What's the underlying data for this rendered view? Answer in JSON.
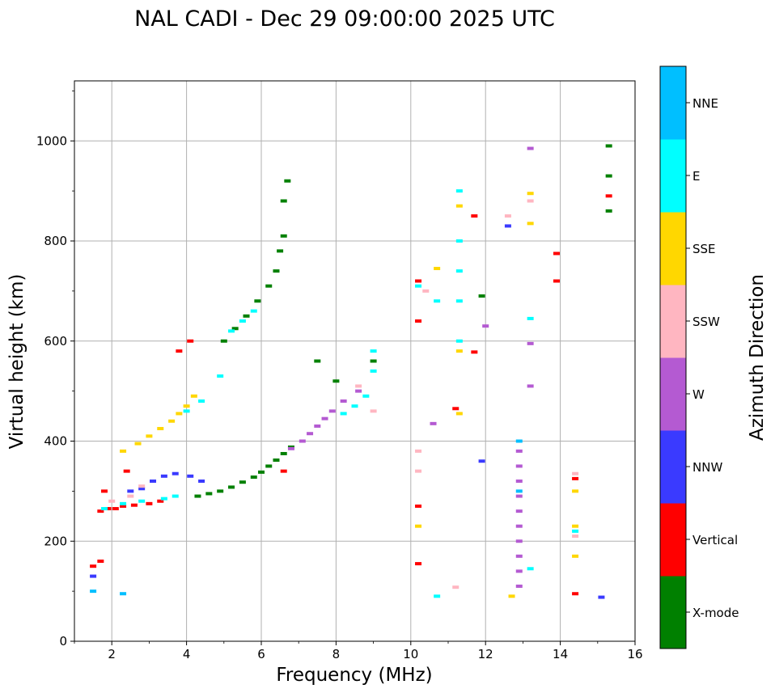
{
  "chart_data": {
    "type": "scatter",
    "title": "NAL CADI - Dec 29 09:00:00 2025 UTC",
    "xlabel": "Frequency (MHz)",
    "ylabel": "Virtual height (km)",
    "xlim": [
      1,
      16
    ],
    "ylim": [
      0,
      1120
    ],
    "x_ticks": [
      2,
      4,
      6,
      8,
      10,
      12,
      14,
      16
    ],
    "y_ticks": [
      0,
      200,
      400,
      600,
      800,
      1000
    ],
    "grid": true,
    "colorbar": {
      "label": "Azimuth Direction",
      "categories": [
        "X-mode",
        "Vertical",
        "NNW",
        "W",
        "SSW",
        "SSE",
        "E",
        "NNE"
      ],
      "colors": {
        "X-mode": "#008000",
        "Vertical": "#ff0000",
        "NNW": "#3a3aff",
        "W": "#b45ad2",
        "SSW": "#ffb6c1",
        "SSE": "#ffd700",
        "E": "#00ffff",
        "NNE": "#00bfff"
      }
    },
    "series": [
      {
        "name": "X-mode",
        "points": [
          [
            4.3,
            290
          ],
          [
            4.6,
            295
          ],
          [
            4.9,
            300
          ],
          [
            5.2,
            308
          ],
          [
            5.5,
            318
          ],
          [
            5.8,
            328
          ],
          [
            6.0,
            338
          ],
          [
            6.2,
            350
          ],
          [
            6.4,
            362
          ],
          [
            6.6,
            375
          ],
          [
            6.8,
            388
          ],
          [
            5.0,
            600
          ],
          [
            5.3,
            625
          ],
          [
            5.6,
            650
          ],
          [
            5.9,
            680
          ],
          [
            6.2,
            710
          ],
          [
            6.4,
            740
          ],
          [
            6.5,
            780
          ],
          [
            6.6,
            810
          ],
          [
            6.6,
            880
          ],
          [
            6.7,
            920
          ],
          [
            7.5,
            560
          ],
          [
            8.0,
            520
          ],
          [
            9.0,
            560
          ],
          [
            11.9,
            690
          ],
          [
            15.3,
            990
          ],
          [
            15.3,
            930
          ],
          [
            15.3,
            860
          ]
        ]
      },
      {
        "name": "Vertical",
        "points": [
          [
            1.5,
            150
          ],
          [
            1.7,
            160
          ],
          [
            1.7,
            260
          ],
          [
            1.9,
            265
          ],
          [
            2.1,
            265
          ],
          [
            2.3,
            270
          ],
          [
            2.6,
            272
          ],
          [
            3.0,
            275
          ],
          [
            3.3,
            280
          ],
          [
            1.8,
            300
          ],
          [
            2.4,
            340
          ],
          [
            3.8,
            580
          ],
          [
            4.1,
            600
          ],
          [
            6.6,
            340
          ],
          [
            10.2,
            720
          ],
          [
            10.2,
            640
          ],
          [
            10.2,
            270
          ],
          [
            10.2,
            155
          ],
          [
            11.2,
            465
          ],
          [
            11.7,
            850
          ],
          [
            11.7,
            578
          ],
          [
            13.9,
            775
          ],
          [
            13.9,
            720
          ],
          [
            14.4,
            325
          ],
          [
            14.4,
            95
          ],
          [
            15.3,
            890
          ]
        ]
      },
      {
        "name": "NNW",
        "points": [
          [
            2.5,
            300
          ],
          [
            2.8,
            305
          ],
          [
            3.1,
            320
          ],
          [
            3.4,
            330
          ],
          [
            3.7,
            335
          ],
          [
            4.1,
            330
          ],
          [
            4.4,
            320
          ],
          [
            1.5,
            130
          ],
          [
            12.6,
            830
          ],
          [
            11.9,
            360
          ],
          [
            15.1,
            88
          ]
        ]
      },
      {
        "name": "W",
        "points": [
          [
            6.8,
            385
          ],
          [
            7.1,
            400
          ],
          [
            7.3,
            415
          ],
          [
            7.5,
            430
          ],
          [
            7.7,
            445
          ],
          [
            7.9,
            460
          ],
          [
            8.2,
            480
          ],
          [
            8.6,
            500
          ],
          [
            12.9,
            380
          ],
          [
            12.9,
            350
          ],
          [
            12.9,
            320
          ],
          [
            12.9,
            290
          ],
          [
            12.9,
            260
          ],
          [
            12.9,
            230
          ],
          [
            12.9,
            200
          ],
          [
            12.9,
            170
          ],
          [
            12.9,
            140
          ],
          [
            12.9,
            110
          ],
          [
            13.2,
            985
          ],
          [
            13.2,
            595
          ],
          [
            13.2,
            510
          ],
          [
            12.0,
            630
          ],
          [
            10.6,
            435
          ]
        ]
      },
      {
        "name": "SSW",
        "points": [
          [
            2.0,
            280
          ],
          [
            2.5,
            290
          ],
          [
            2.8,
            310
          ],
          [
            8.6,
            510
          ],
          [
            9.0,
            460
          ],
          [
            10.4,
            700
          ],
          [
            10.2,
            380
          ],
          [
            10.2,
            340
          ],
          [
            11.2,
            108
          ],
          [
            12.6,
            850
          ],
          [
            13.2,
            880
          ],
          [
            14.4,
            335
          ],
          [
            14.4,
            210
          ]
        ]
      },
      {
        "name": "SSE",
        "points": [
          [
            2.3,
            380
          ],
          [
            2.7,
            395
          ],
          [
            3.0,
            410
          ],
          [
            3.3,
            425
          ],
          [
            3.6,
            440
          ],
          [
            3.8,
            455
          ],
          [
            4.0,
            470
          ],
          [
            4.2,
            490
          ],
          [
            11.3,
            870
          ],
          [
            11.3,
            580
          ],
          [
            11.3,
            455
          ],
          [
            10.2,
            230
          ],
          [
            10.7,
            745
          ],
          [
            12.7,
            90
          ],
          [
            13.2,
            835
          ],
          [
            13.2,
            895
          ],
          [
            14.4,
            300
          ],
          [
            14.4,
            230
          ],
          [
            14.4,
            170
          ]
        ]
      },
      {
        "name": "E",
        "points": [
          [
            1.8,
            265
          ],
          [
            2.3,
            275
          ],
          [
            2.8,
            280
          ],
          [
            3.4,
            285
          ],
          [
            3.7,
            290
          ],
          [
            4.0,
            460
          ],
          [
            4.4,
            480
          ],
          [
            4.9,
            530
          ],
          [
            5.2,
            620
          ],
          [
            5.5,
            640
          ],
          [
            5.8,
            660
          ],
          [
            8.2,
            455
          ],
          [
            8.5,
            470
          ],
          [
            8.8,
            490
          ],
          [
            9.0,
            580
          ],
          [
            9.0,
            540
          ],
          [
            11.3,
            900
          ],
          [
            11.3,
            800
          ],
          [
            11.3,
            740
          ],
          [
            11.3,
            680
          ],
          [
            11.3,
            600
          ],
          [
            10.7,
            680
          ],
          [
            10.7,
            90
          ],
          [
            10.2,
            710
          ],
          [
            13.2,
            645
          ],
          [
            13.2,
            145
          ],
          [
            14.4,
            220
          ]
        ]
      },
      {
        "name": "NNE",
        "points": [
          [
            12.9,
            400
          ],
          [
            12.9,
            300
          ],
          [
            2.3,
            95
          ],
          [
            1.5,
            100
          ]
        ]
      }
    ]
  }
}
